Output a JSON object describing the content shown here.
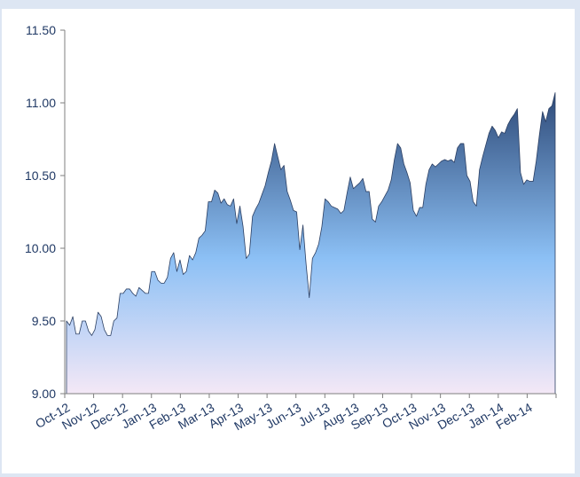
{
  "chart_data": {
    "type": "area",
    "x_labels": [
      "Oct-12",
      "Nov-12",
      "Dec-12",
      "Jan-13",
      "Feb-13",
      "Mar-13",
      "Apr-13",
      "May-13",
      "Jun-13",
      "Jul-13",
      "Aug-13",
      "Sep-13",
      "Oct-13",
      "Nov-13",
      "Dec-13",
      "Jan-14",
      "Feb-14"
    ],
    "y_ticks": [
      "9.00",
      "9.50",
      "10.00",
      "10.50",
      "11.00",
      "11.50"
    ],
    "ylim": [
      9.0,
      11.5
    ],
    "grid": false,
    "legend": "none",
    "colors": {
      "top": "#2e4a78",
      "middle": "#8cc0f5",
      "bottom": "#f4e8f6",
      "axis": "#7f7f7f",
      "text": "#1f3864",
      "background": "#dde6f3"
    },
    "values": [
      9.5,
      9.47,
      9.53,
      9.41,
      9.41,
      9.5,
      9.5,
      9.43,
      9.4,
      9.44,
      9.56,
      9.53,
      9.44,
      9.4,
      9.4,
      9.5,
      9.52,
      9.69,
      9.69,
      9.72,
      9.72,
      9.69,
      9.67,
      9.73,
      9.71,
      9.69,
      9.69,
      9.84,
      9.84,
      9.78,
      9.76,
      9.76,
      9.8,
      9.93,
      9.97,
      9.84,
      9.92,
      9.82,
      9.84,
      9.95,
      9.92,
      9.97,
      10.07,
      10.09,
      10.12,
      10.32,
      10.32,
      10.4,
      10.38,
      10.31,
      10.34,
      10.3,
      10.29,
      10.34,
      10.17,
      10.29,
      10.15,
      9.93,
      9.96,
      10.22,
      10.27,
      10.31,
      10.37,
      10.43,
      10.52,
      10.6,
      10.72,
      10.63,
      10.54,
      10.57,
      10.39,
      10.33,
      10.26,
      10.25,
      9.99,
      10.16,
      9.89,
      9.66,
      9.93,
      9.97,
      10.03,
      10.15,
      10.34,
      10.32,
      10.29,
      10.28,
      10.27,
      10.24,
      10.26,
      10.38,
      10.49,
      10.41,
      10.43,
      10.45,
      10.48,
      10.39,
      10.39,
      10.2,
      10.18,
      10.29,
      10.32,
      10.36,
      10.4,
      10.47,
      10.61,
      10.72,
      10.69,
      10.58,
      10.52,
      10.45,
      10.26,
      10.22,
      10.28,
      10.28,
      10.44,
      10.54,
      10.58,
      10.56,
      10.58,
      10.6,
      10.61,
      10.6,
      10.61,
      10.59,
      10.69,
      10.72,
      10.72,
      10.5,
      10.46,
      10.32,
      10.29,
      10.54,
      10.63,
      10.71,
      10.79,
      10.84,
      10.81,
      10.76,
      10.8,
      10.79,
      10.85,
      10.89,
      10.92,
      10.96,
      10.52,
      10.44,
      10.47,
      10.46,
      10.46,
      10.6,
      10.78,
      10.94,
      10.87,
      10.96,
      10.98,
      11.07
    ]
  }
}
